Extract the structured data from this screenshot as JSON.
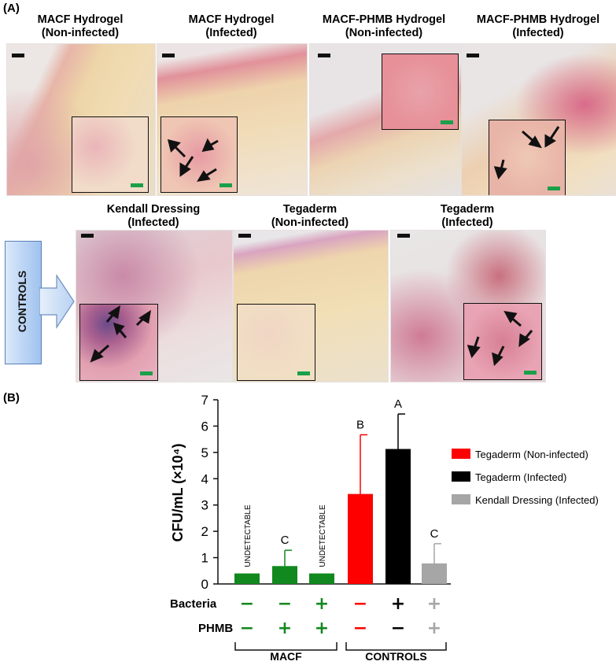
{
  "panel_a": {
    "label": "(A)",
    "top_row": [
      {
        "title_line1": "MACF Hydrogel",
        "title_line2": "(Non-infected)"
      },
      {
        "title_line1": "MACF Hydrogel",
        "title_line2": "(Infected)"
      },
      {
        "title_line1": "MACF-PHMB Hydrogel",
        "title_line2": "(Non-infected)"
      },
      {
        "title_line1": "MACF-PHMB Hydrogel",
        "title_line2": "(Infected)"
      }
    ],
    "bottom_row": [
      {
        "title_line1": "Kendall Dressing",
        "title_line2": "(Infected)"
      },
      {
        "title_line1": "Tegaderm",
        "title_line2": "(Non-infected)"
      },
      {
        "title_line1": "Tegaderm",
        "title_line2": "(Infected)"
      }
    ],
    "controls_label": "CONTROLS"
  },
  "panel_b": {
    "label": "(B)",
    "row_labels": {
      "bacteria": "Bacteria",
      "phmb": "PHMB"
    },
    "bacteria_signs": [
      "−",
      "−",
      "+",
      "−",
      "+",
      "+"
    ],
    "phmb_signs": [
      "−",
      "+",
      "+",
      "−",
      "−",
      "+"
    ],
    "group_labels": {
      "macf": "MACF",
      "controls": "CONTROLS"
    },
    "undetectable": "UNDETECTABLE"
  },
  "chart_data": {
    "type": "bar",
    "ylabel": "CFU/mL (×10⁴)",
    "ylim": [
      0,
      7
    ],
    "yticks": [
      0,
      1,
      2,
      3,
      4,
      5,
      6,
      7
    ],
    "categories": [
      "",
      "",
      "",
      "",
      "",
      ""
    ],
    "values": [
      0.4,
      0.68,
      0.4,
      3.42,
      5.13,
      0.78
    ],
    "errors": [
      0,
      0.6,
      0,
      2.25,
      1.33,
      0.75
    ],
    "letters": [
      "",
      "C",
      "",
      "B",
      "A",
      "C"
    ],
    "annotations": [
      "UNDETECTABLE",
      "",
      "UNDETECTABLE",
      "",
      "",
      ""
    ],
    "colors": [
      "#12891f",
      "#12891f",
      "#12891f",
      "#fe0000",
      "#000000",
      "#a6a6a6"
    ],
    "legend": [
      {
        "name": "Tegaderm (Non-infected)",
        "color": "#fe0000"
      },
      {
        "name": "Tegaderm (Infected)",
        "color": "#000000"
      },
      {
        "name": "Kendall Dressing (Infected)",
        "color": "#a6a6a6"
      }
    ],
    "legend_position": "right"
  }
}
